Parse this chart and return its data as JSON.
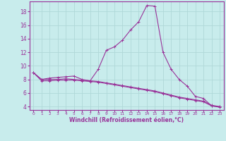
{
  "xlabel": "Windchill (Refroidissement éolien,°C)",
  "bg_color": "#c8ecec",
  "line_color": "#993399",
  "grid_color": "#b0d8d8",
  "hours": [
    0,
    1,
    2,
    3,
    4,
    5,
    6,
    7,
    8,
    9,
    10,
    11,
    12,
    13,
    14,
    15,
    16,
    17,
    18,
    19,
    20,
    21,
    22,
    23
  ],
  "temp": [
    9.0,
    8.0,
    8.2,
    8.3,
    8.4,
    8.5,
    8.0,
    7.8,
    9.5,
    12.3,
    12.8,
    13.8,
    15.3,
    16.5,
    18.9,
    18.8,
    12.0,
    9.5,
    8.0,
    7.0,
    5.5,
    5.2,
    4.1,
    4.0
  ],
  "windchill1": [
    9.0,
    8.0,
    8.0,
    8.0,
    8.1,
    8.0,
    7.9,
    7.8,
    7.7,
    7.5,
    7.3,
    7.1,
    6.9,
    6.7,
    6.5,
    6.3,
    6.0,
    5.7,
    5.4,
    5.2,
    5.0,
    4.8,
    4.2,
    4.0
  ],
  "windchill2": [
    9.0,
    7.8,
    7.8,
    7.9,
    7.9,
    7.9,
    7.8,
    7.7,
    7.6,
    7.4,
    7.2,
    7.0,
    6.8,
    6.6,
    6.4,
    6.2,
    5.9,
    5.6,
    5.3,
    5.1,
    4.9,
    4.7,
    4.1,
    3.9
  ],
  "ylim": [
    3.5,
    19.5
  ],
  "yticks": [
    4,
    6,
    8,
    10,
    12,
    14,
    16,
    18
  ],
  "xlim": [
    -0.5,
    23.5
  ],
  "figsize": [
    3.2,
    2.0
  ],
  "dpi": 100
}
